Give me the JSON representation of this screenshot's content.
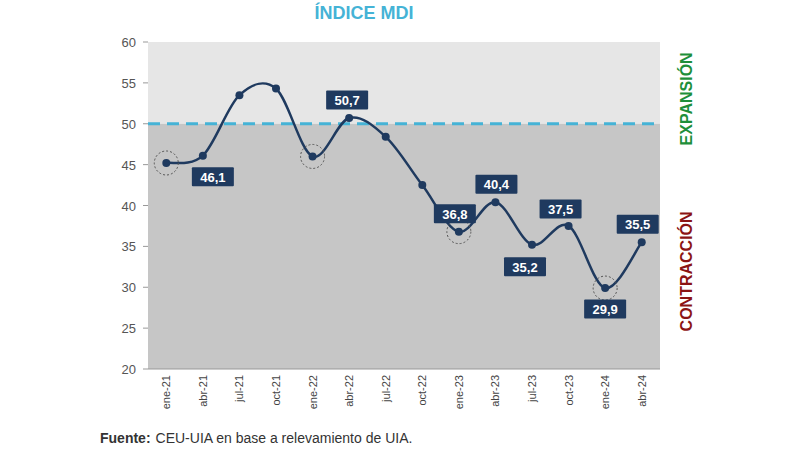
{
  "chart_data": {
    "type": "line",
    "title": "ÍNDICE MDI",
    "categories": [
      "ene-21",
      "abr-21",
      "jul-21",
      "oct-21",
      "ene-22",
      "abr-22",
      "jul-22",
      "oct-22",
      "ene-23",
      "abr-23",
      "jul-23",
      "oct-23",
      "ene-24",
      "abr-24"
    ],
    "values": [
      45.2,
      46.1,
      53.5,
      54.3,
      46.0,
      50.7,
      48.4,
      42.5,
      36.8,
      40.4,
      35.2,
      37.5,
      29.9,
      35.5
    ],
    "value_labels": [
      null,
      "46,1",
      null,
      null,
      null,
      "50,7",
      null,
      null,
      "36,8",
      "40,4",
      "35,2",
      "37,5",
      "29,9",
      "35,5"
    ],
    "data_labels": true,
    "color": "#1f3a5f",
    "marker": "circle",
    "ylim": [
      20,
      60
    ],
    "yticks": [
      20,
      25,
      30,
      35,
      40,
      45,
      50,
      55,
      60
    ],
    "grid": false,
    "reference_line": 50,
    "annotations": [
      "EXPANSIÓN",
      "CONTRACCIÓN"
    ],
    "source_label": "Fuente:",
    "source": "CEU-UIA en base a relevamiento de UIA."
  }
}
